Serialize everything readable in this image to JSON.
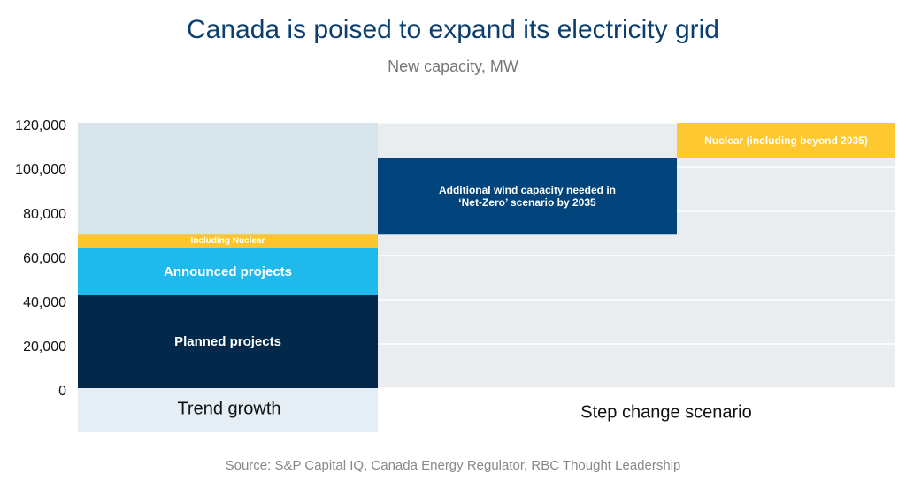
{
  "chart_data": {
    "type": "waterfall",
    "title": "Canada is poised to expand its electricity grid",
    "subtitle": "New capacity, MW",
    "source": "Source: S&P Capital IQ, Canada Energy Regulator, RBC Thought Leadership",
    "categories": [
      "Trend growth",
      "Step change scenario"
    ],
    "steps": [
      {
        "name": "Planned projects",
        "value": 42000,
        "color": "#02294a"
      },
      {
        "name": "Announced projects",
        "value": 21500,
        "color": "#1fb9ec"
      },
      {
        "name": "Including Nuclear",
        "value": 6000,
        "color": "#fcc530"
      },
      {
        "name": "Additional wind capacity needed in ‘Net-Zero’ scenario by 2035",
        "value": 34500,
        "color": "#01447c"
      },
      {
        "name": "Nuclear (including beyond 2035)",
        "value": 16000,
        "color": "#fdc830"
      }
    ],
    "ylim": [
      0,
      120000
    ],
    "yticks": [
      0,
      {
        "value": 20000,
        "label": "20,000"
      },
      {
        "value": 40000,
        "label": "40,000"
      },
      {
        "value": 60000,
        "label": "60,000"
      },
      {
        "value": 80000,
        "label": "80,000"
      },
      {
        "value": 100000,
        "label": "100,000"
      },
      {
        "value": 120000,
        "label": "120,000"
      }
    ],
    "grid": true
  }
}
